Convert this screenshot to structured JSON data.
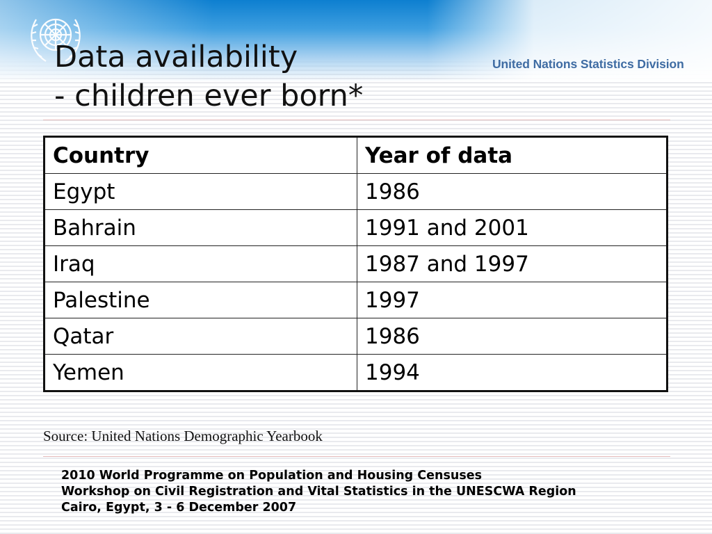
{
  "header": {
    "organization": "United Nations Statistics Division"
  },
  "title": {
    "line1": "Data availability",
    "line2": "- children ever born*"
  },
  "table": {
    "headers": [
      "Country",
      "Year of data"
    ],
    "rows": [
      [
        "Egypt",
        "1986"
      ],
      [
        "Bahrain",
        "1991 and 2001"
      ],
      [
        "Iraq",
        "1987 and 1997"
      ],
      [
        "Palestine",
        "1997"
      ],
      [
        "Qatar",
        "1986"
      ],
      [
        "Yemen",
        "1994"
      ]
    ]
  },
  "source": "Source: United Nations Demographic Yearbook",
  "footer": {
    "line1": "2010 World Programme on Population and Housing Censuses",
    "line2": "Workshop on Civil Registration and Vital Statistics in the UNESCWA Region",
    "line3": "Cairo, Egypt, 3 - 6 December 2007"
  },
  "icons": {
    "logo": "un-emblem-icon"
  },
  "colors": {
    "header_blue": "#0d7fd0",
    "division_text": "#3f6ca3"
  }
}
